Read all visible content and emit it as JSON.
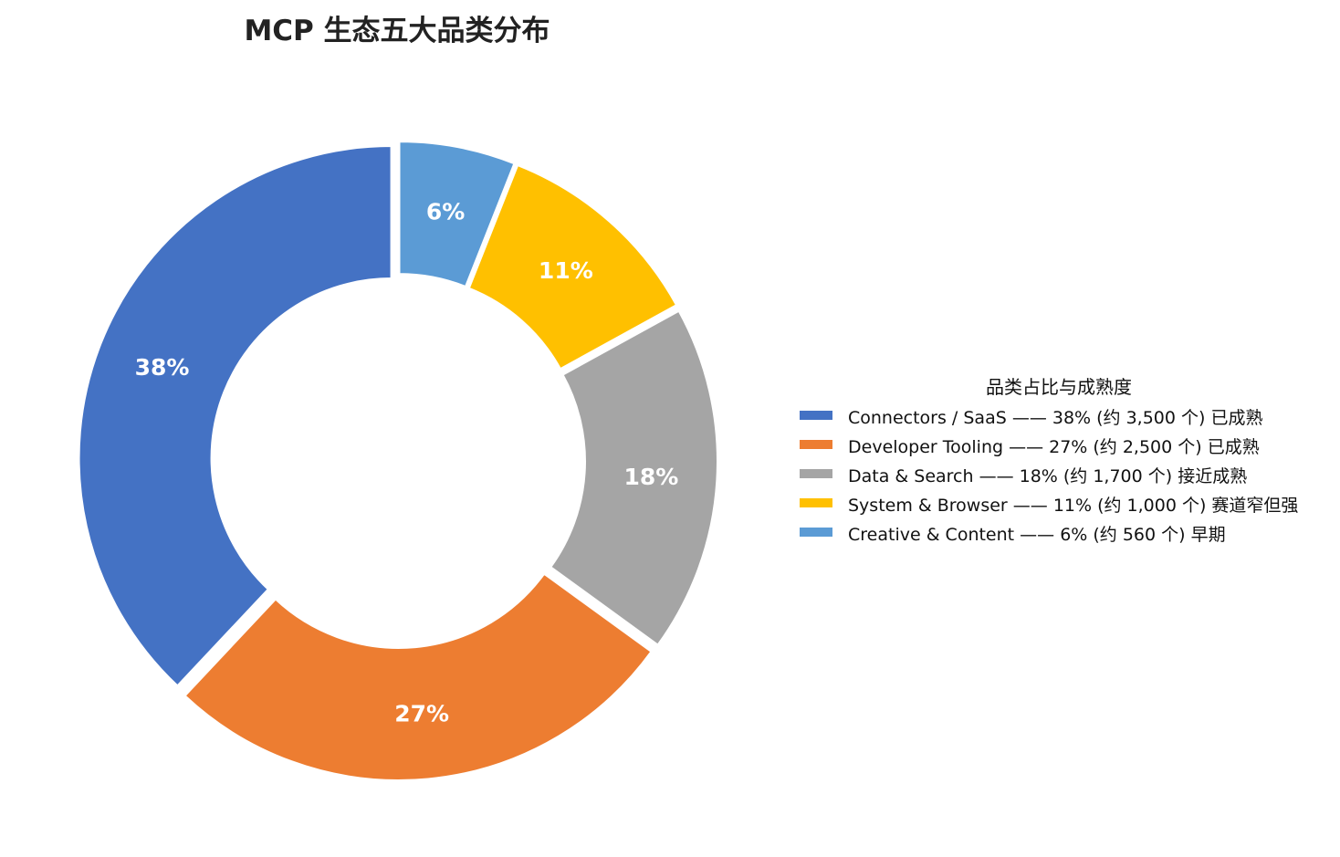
{
  "chart_data": {
    "type": "pie",
    "title": "MCP 生态五大品类分布",
    "legend_title": "品类占比与成熟度",
    "legend_position": "right",
    "slices": [
      {
        "category": "Connectors / SaaS",
        "value": 38,
        "label": "38%",
        "legend": "Connectors / SaaS —— 38%  (约 3,500 个)  已成熟",
        "color": "#4472C4"
      },
      {
        "category": "Developer Tooling",
        "value": 27,
        "label": "27%",
        "legend": "Developer Tooling —— 27%  (约 2,500 个)  已成熟",
        "color": "#ED7D31"
      },
      {
        "category": "Data & Search",
        "value": 18,
        "label": "18%",
        "legend": "Data & Search —— 18%  (约 1,700 个)  接近成熟",
        "color": "#A5A5A5"
      },
      {
        "category": "System & Browser",
        "value": 11,
        "label": "11%",
        "legend": "System & Browser —— 11%  (约 1,000 个)  赛道窄但强",
        "color": "#FFC000"
      },
      {
        "category": "Creative & Content",
        "value": 6,
        "label": "6%",
        "legend": "Creative & Content —— 6%  (约 560 个)  早期",
        "color": "#5B9BD5"
      }
    ]
  }
}
